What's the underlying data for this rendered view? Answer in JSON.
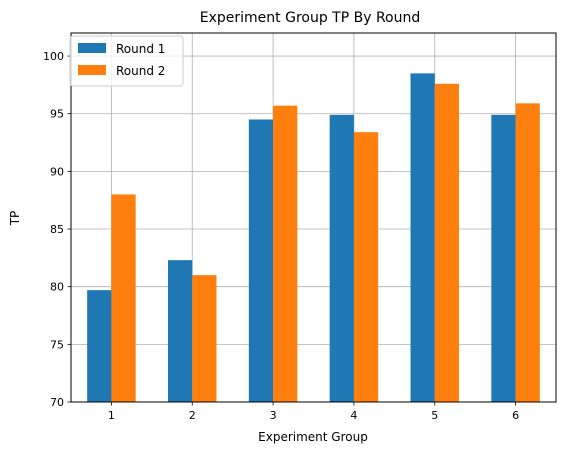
{
  "chart_data": {
    "type": "bar",
    "title": "Experiment Group TP By Round",
    "xlabel": "Experiment Group",
    "ylabel": "TP",
    "categories": [
      "1",
      "2",
      "3",
      "4",
      "5",
      "6"
    ],
    "series": [
      {
        "name": "Round 1",
        "color": "#1f77b4",
        "values": [
          79.7,
          82.3,
          94.5,
          94.9,
          98.5,
          94.9
        ]
      },
      {
        "name": "Round 2",
        "color": "#ff7f0e",
        "values": [
          88.0,
          81.0,
          95.7,
          93.4,
          97.6,
          95.9
        ]
      }
    ],
    "ylim": [
      70,
      102
    ],
    "yticks": [
      70,
      75,
      80,
      85,
      90,
      95,
      100
    ],
    "grid": true,
    "legend": "top-left"
  }
}
